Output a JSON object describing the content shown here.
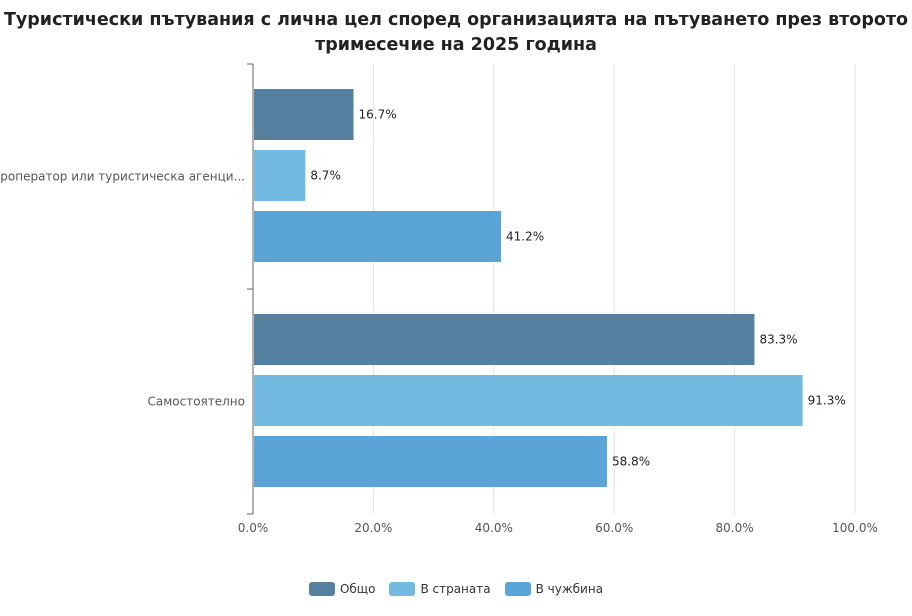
{
  "chart_data": {
    "type": "bar",
    "orientation": "horizontal",
    "title": "Туристически пътувания с лична цел според организацията на пътуването през второто тримесечие на 2025 година",
    "categories": [
      "Туроператор или туристическа агенци...",
      "Самостоятелно"
    ],
    "series": [
      {
        "name": "Общо",
        "color": "#55809f",
        "values": [
          16.7,
          83.3
        ],
        "labels": [
          "16.7%",
          "83.3%"
        ]
      },
      {
        "name": "В страната",
        "color": "#72badf",
        "values": [
          8.7,
          91.3
        ],
        "labels": [
          "8.7%",
          "91.3%"
        ]
      },
      {
        "name": "В чужбина",
        "color": "#5ba4d8",
        "values": [
          41.2,
          58.8
        ],
        "labels": [
          "41.2%",
          "58.8%"
        ]
      }
    ],
    "x_ticks": [
      "0.0%",
      "20.0%",
      "40.0%",
      "60.0%",
      "80.0%",
      "100.0%"
    ],
    "xlim": [
      0,
      100
    ],
    "grid": true,
    "legend": "bottom-center"
  }
}
